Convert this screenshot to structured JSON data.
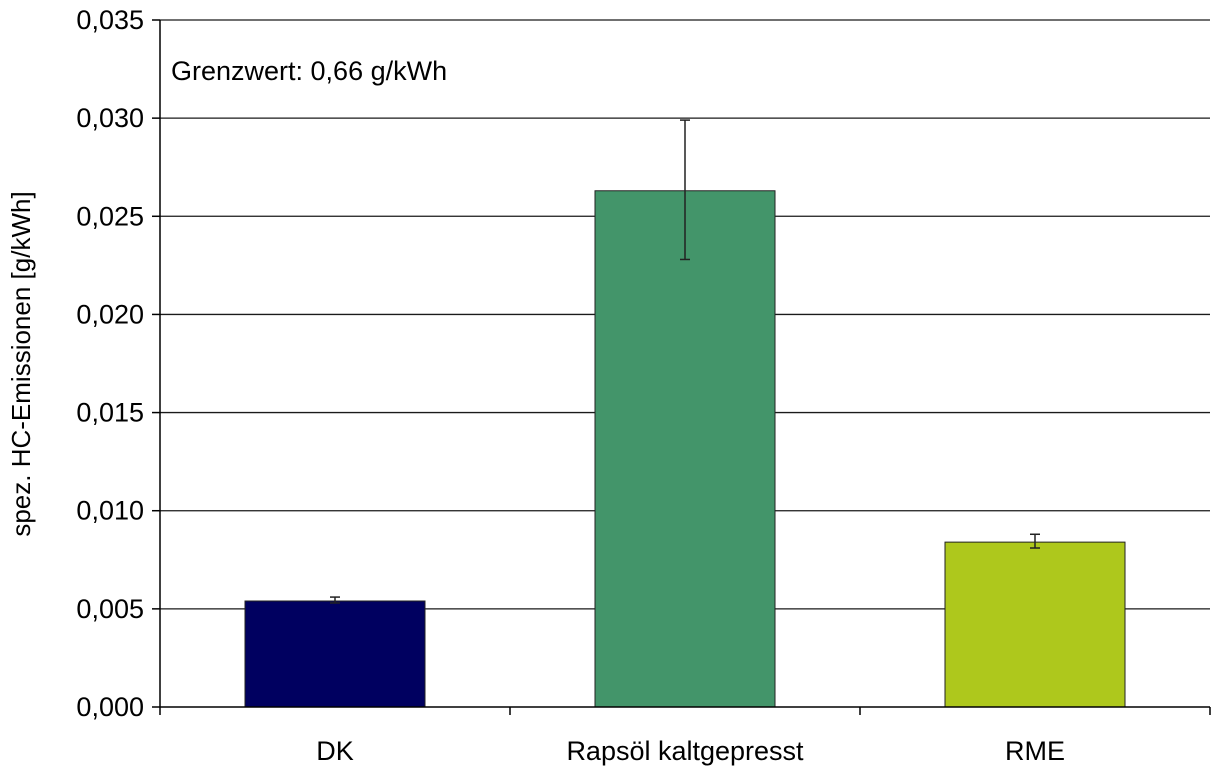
{
  "chart_data": {
    "type": "bar",
    "categories": [
      "DK",
      "Rapsöl kaltgepresst",
      "RME"
    ],
    "values": [
      0.0054,
      0.0263,
      0.0084
    ],
    "error_low": [
      0.0053,
      0.0228,
      0.0081
    ],
    "error_high": [
      0.0056,
      0.0299,
      0.0088
    ],
    "colors": [
      "#000060",
      "#43956a",
      "#aec81c"
    ],
    "ylabel": "spez. HC-Emissionen [g/kWh]",
    "xlabel": "",
    "ylim": [
      0,
      0.035
    ],
    "yticks": [
      0.0,
      0.005,
      0.01,
      0.015,
      0.02,
      0.025,
      0.03,
      0.035
    ],
    "ytick_labels": [
      "0,000",
      "0,005",
      "0,010",
      "0,015",
      "0,020",
      "0,025",
      "0,030",
      "0,035"
    ],
    "annotation": "Grenzwert: 0,66 g/kWh",
    "grid": true,
    "legend": "none"
  }
}
